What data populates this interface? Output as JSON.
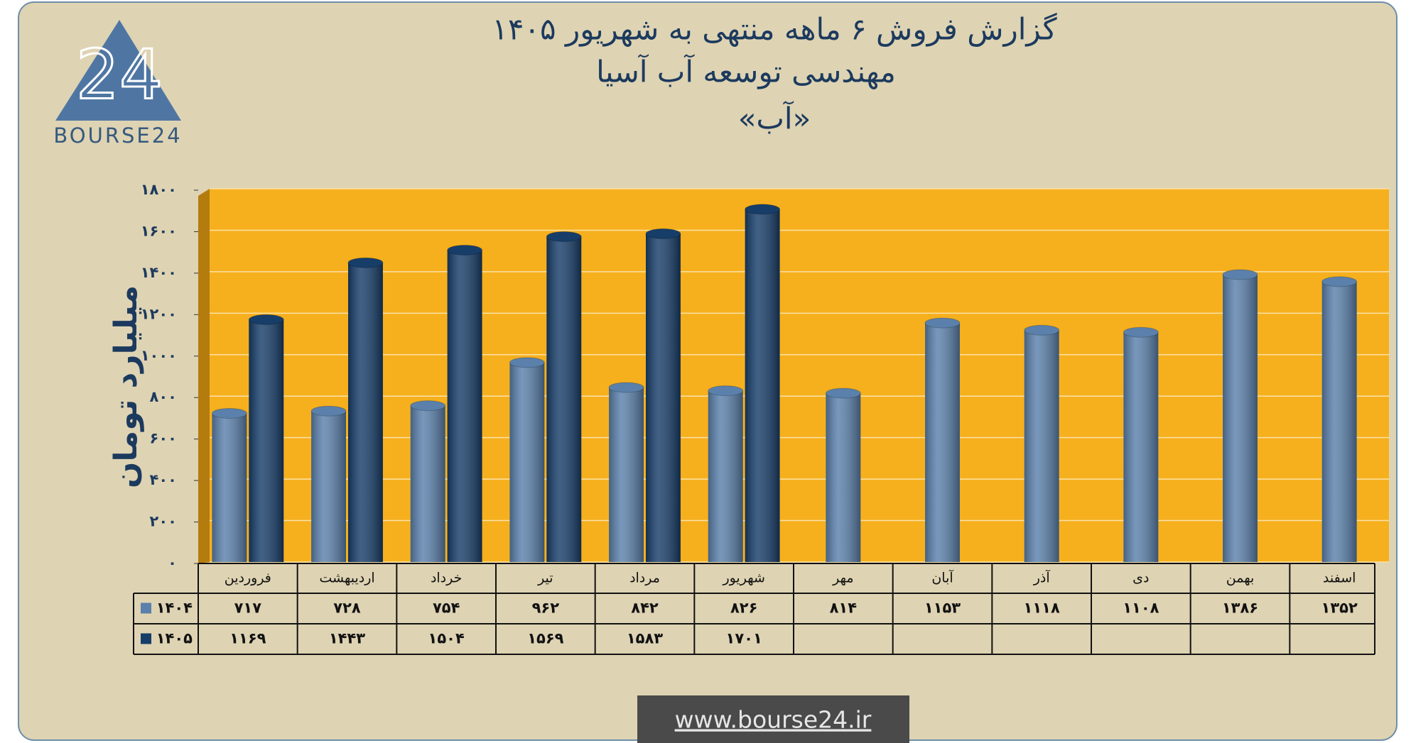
{
  "logo": {
    "mark": "24",
    "text": "BOURSE24"
  },
  "footer": {
    "url": "www.bourse24.ir"
  },
  "chart_data": {
    "type": "bar",
    "title": [
      "گزارش فروش ۶ ماهه منتهی به شهریور ۱۴۰۵",
      "مهندسی توسعه آب آسیا",
      "«آب»"
    ],
    "y_label": "میلیارد تومان",
    "categories": [
      "فروردین",
      "اردیبهشت",
      "خرداد",
      "تیر",
      "مرداد",
      "شهریور",
      "مهر",
      "آبان",
      "آذر",
      "دی",
      "بهمن",
      "اسفند"
    ],
    "series": [
      {
        "name": "۱۴۰۴",
        "color": "#5a80ab",
        "values": [
          717,
          728,
          754,
          962,
          842,
          826,
          814,
          1153,
          1118,
          1108,
          1386,
          1352
        ],
        "value_labels": [
          "۷۱۷",
          "۷۲۸",
          "۷۵۴",
          "۹۶۲",
          "۸۴۲",
          "۸۲۶",
          "۸۱۴",
          "۱۱۵۳",
          "۱۱۱۸",
          "۱۱۰۸",
          "۱۳۸۶",
          "۱۳۵۲"
        ]
      },
      {
        "name": "۱۴۰۵",
        "color": "#173d69",
        "values": [
          1169,
          1443,
          1504,
          1569,
          1583,
          1701,
          null,
          null,
          null,
          null,
          null,
          null
        ],
        "value_labels": [
          "۱۱۶۹",
          "۱۴۴۳",
          "۱۵۰۴",
          "۱۵۶۹",
          "۱۵۸۳",
          "۱۷۰۱",
          null,
          null,
          null,
          null,
          null,
          null
        ]
      }
    ],
    "ylim": [
      0,
      1800
    ],
    "yticks": [
      {
        "value": 0,
        "label": "۰"
      },
      {
        "value": 200,
        "label": "۲۰۰"
      },
      {
        "value": 400,
        "label": "۴۰۰"
      },
      {
        "value": 600,
        "label": "۶۰۰"
      },
      {
        "value": 800,
        "label": "۸۰۰"
      },
      {
        "value": 1000,
        "label": "۱۰۰۰"
      },
      {
        "value": 1200,
        "label": "۱۲۰۰"
      },
      {
        "value": 1400,
        "label": "۱۴۰۰"
      },
      {
        "value": 1600,
        "label": "۱۶۰۰"
      },
      {
        "value": 1800,
        "label": "۱۸۰۰"
      }
    ],
    "grid": true,
    "plot_color": "#f6b01e"
  }
}
